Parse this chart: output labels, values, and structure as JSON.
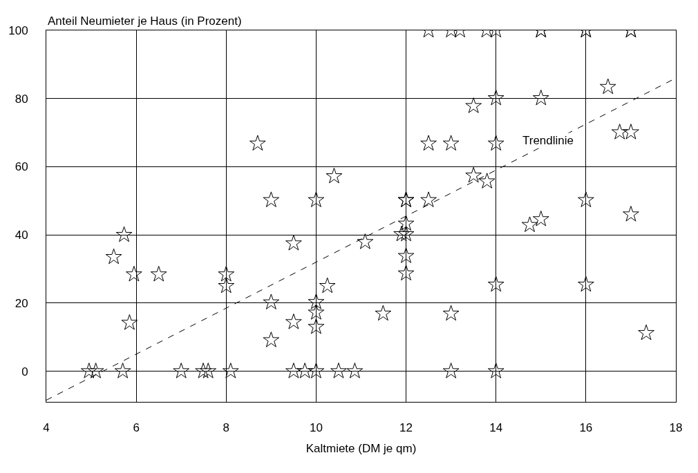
{
  "chart_data": {
    "type": "scatter",
    "ylabel": "Anteil Neumieter je Haus (in Prozent)",
    "xlabel": "Kaltmiete (DM je qm)",
    "xlim": [
      4,
      18
    ],
    "xticks": [
      4,
      6,
      8,
      10,
      12,
      14,
      16,
      18
    ],
    "ylim": [
      -9,
      100
    ],
    "yticks": [
      0,
      20,
      40,
      60,
      80,
      100
    ],
    "grid": true,
    "legend": false,
    "marker": "star",
    "series": [
      {
        "color": "#000000",
        "x": [
          12.5,
          13.0,
          13.2,
          13.79,
          14.0,
          15.0,
          15.0,
          16.0,
          16.0,
          17.0,
          17.0,
          16.49,
          14.0,
          15.0,
          13.5,
          16.75,
          17.0,
          8.7,
          12.5,
          13.0,
          14.0,
          10.4,
          13.5,
          13.8,
          9.0,
          10.0,
          12.0,
          12.0,
          12.5,
          16.0,
          17.0,
          14.75,
          15.0,
          12.0,
          11.9,
          12.0,
          12.0,
          12.0,
          11.09,
          5.73,
          5.5,
          5.95,
          6.5,
          8.0,
          8.0,
          9.5,
          5.85,
          9.0,
          9.0,
          9.5,
          10.0,
          10.0,
          10.0,
          10.25,
          14.0,
          16.0,
          11.49,
          13.0,
          17.34,
          4.95,
          5.1,
          5.7,
          7.0,
          7.49,
          7.6,
          8.1,
          9.5,
          9.75,
          10.0,
          10.5,
          10.86,
          13.0,
          14.0
        ],
        "values": [
          100,
          100,
          100,
          100,
          100,
          100,
          100,
          100,
          100,
          100,
          100,
          83.4,
          80.1,
          80.1,
          77.8,
          70.1,
          70.1,
          66.8,
          66.8,
          66.8,
          66.8,
          57.2,
          57.4,
          55.7,
          50.2,
          50.2,
          50.2,
          50.2,
          50.2,
          50.2,
          46.0,
          42.9,
          44.6,
          43.3,
          40.2,
          40.2,
          33.8,
          28.7,
          37.9,
          40.0,
          33.5,
          28.4,
          28.4,
          28.4,
          25.0,
          37.5,
          14.2,
          20.2,
          9.1,
          14.4,
          20.3,
          17.2,
          13.0,
          25.0,
          25.4,
          25.4,
          16.9,
          16.9,
          11.2,
          0,
          0,
          0,
          0,
          0,
          0,
          0,
          0,
          0,
          0,
          0,
          0,
          0,
          0
        ]
      },
      {
        "type": "line",
        "name": "Trendlinie",
        "color": "#000000",
        "marker": "none",
        "line_style": "dashed",
        "x": [
          4,
          18
        ],
        "values": [
          -8.5,
          86
        ]
      }
    ]
  }
}
